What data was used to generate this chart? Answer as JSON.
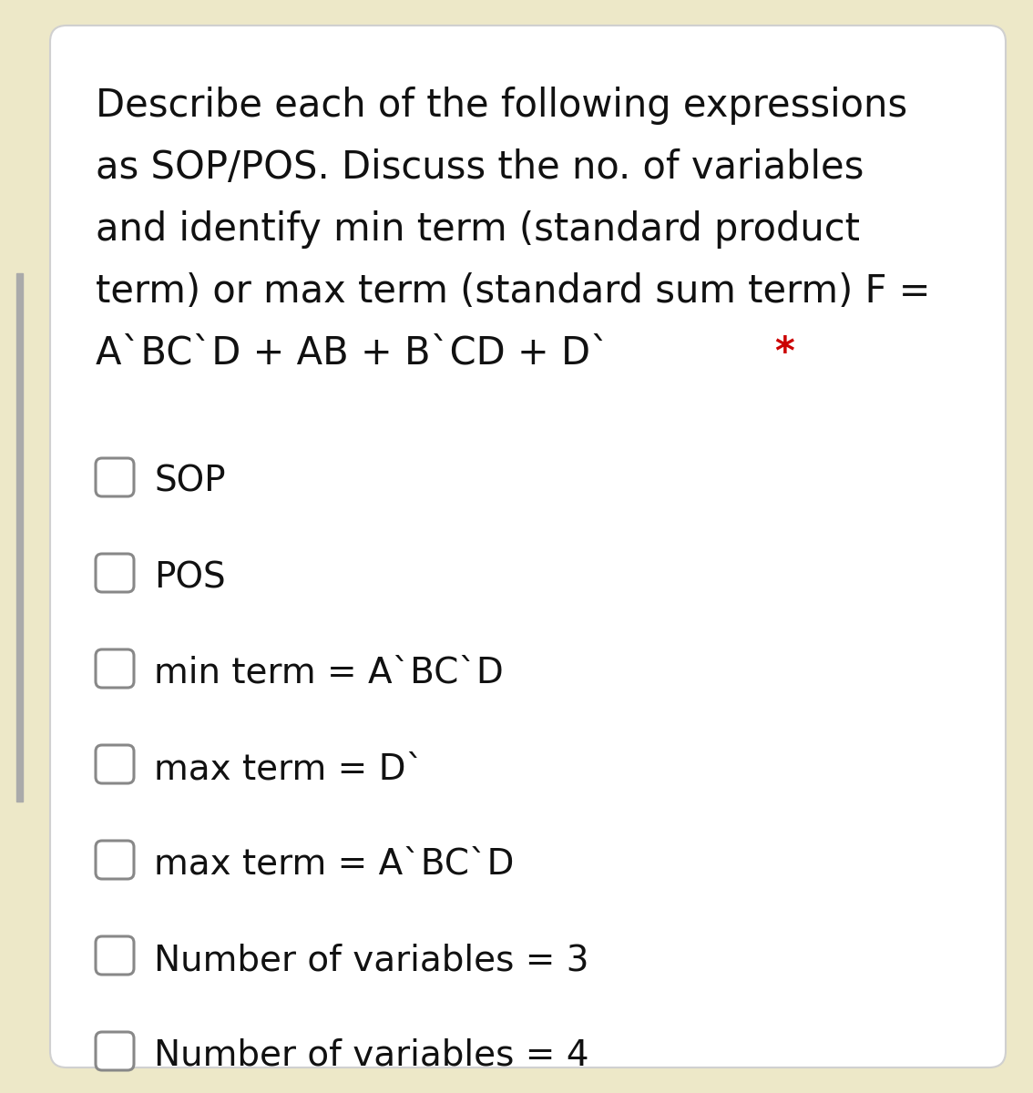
{
  "background_color": "#ede8c8",
  "card_color": "#ffffff",
  "card_border_color": "#d0d0d0",
  "title_lines": [
    "Describe each of the following expressions",
    "as SOP/POS. Discuss the no. of variables",
    "and identify min term (standard product",
    "term) or max term (standard sum term) F =",
    "A`BC`D + AB + B`CD + D` "
  ],
  "star": "*",
  "options": [
    "SOP",
    "POS",
    "min term = A`BC`D",
    "max term = D`",
    "max term = A`BC`D",
    "Number of variables = 3",
    "Number of variables = 4"
  ],
  "text_color": "#111111",
  "star_color": "#cc0000",
  "checkbox_edge_color": "#888888",
  "font_size_title": 30,
  "font_size_options": 28,
  "fig_width": 11.34,
  "fig_height": 12.0,
  "dpi": 100
}
